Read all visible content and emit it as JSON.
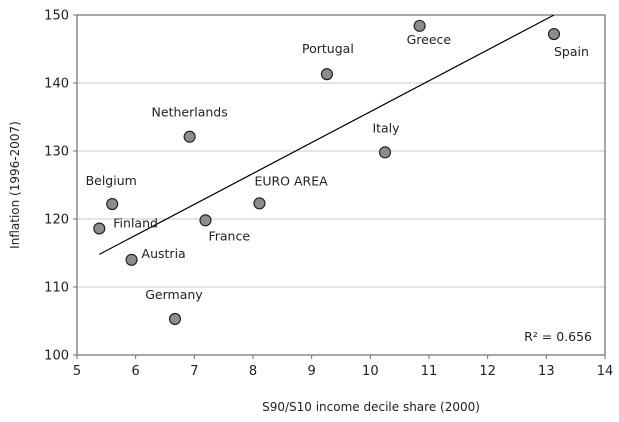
{
  "chart_data": {
    "type": "scatter",
    "xlabel": "S90/S10 income decile share (2000)",
    "ylabel": "Inflation (1996-2007)",
    "xlim": [
      5,
      14
    ],
    "ylim": [
      100,
      150
    ],
    "xticks": [
      "5",
      "6",
      "7",
      "8",
      "9",
      "10",
      "11",
      "12",
      "13",
      "14"
    ],
    "yticks": [
      "100",
      "110",
      "120",
      "130",
      "140",
      "150"
    ],
    "grid": "horizontal",
    "point_color": "#8c8c8c",
    "points": [
      {
        "label": "Finland",
        "x": 5.38,
        "y": 118.6
      },
      {
        "label": "Belgium",
        "x": 5.6,
        "y": 122.2
      },
      {
        "label": "Austria",
        "x": 5.93,
        "y": 114.0
      },
      {
        "label": "Germany",
        "x": 6.67,
        "y": 105.3
      },
      {
        "label": "Netherlands",
        "x": 6.92,
        "y": 132.1
      },
      {
        "label": "France",
        "x": 7.19,
        "y": 119.8
      },
      {
        "label": "EURO AREA",
        "x": 8.11,
        "y": 122.3
      },
      {
        "label": "Portugal",
        "x": 9.26,
        "y": 141.3
      },
      {
        "label": "Italy",
        "x": 10.25,
        "y": 129.8
      },
      {
        "label": "Greece",
        "x": 10.84,
        "y": 148.4
      },
      {
        "label": "Spain",
        "x": 13.13,
        "y": 147.2
      }
    ],
    "trendline": {
      "x": [
        5.38,
        13.13
      ],
      "y": [
        114.8,
        150.0
      ]
    },
    "annotation": "R² = 0.656"
  }
}
